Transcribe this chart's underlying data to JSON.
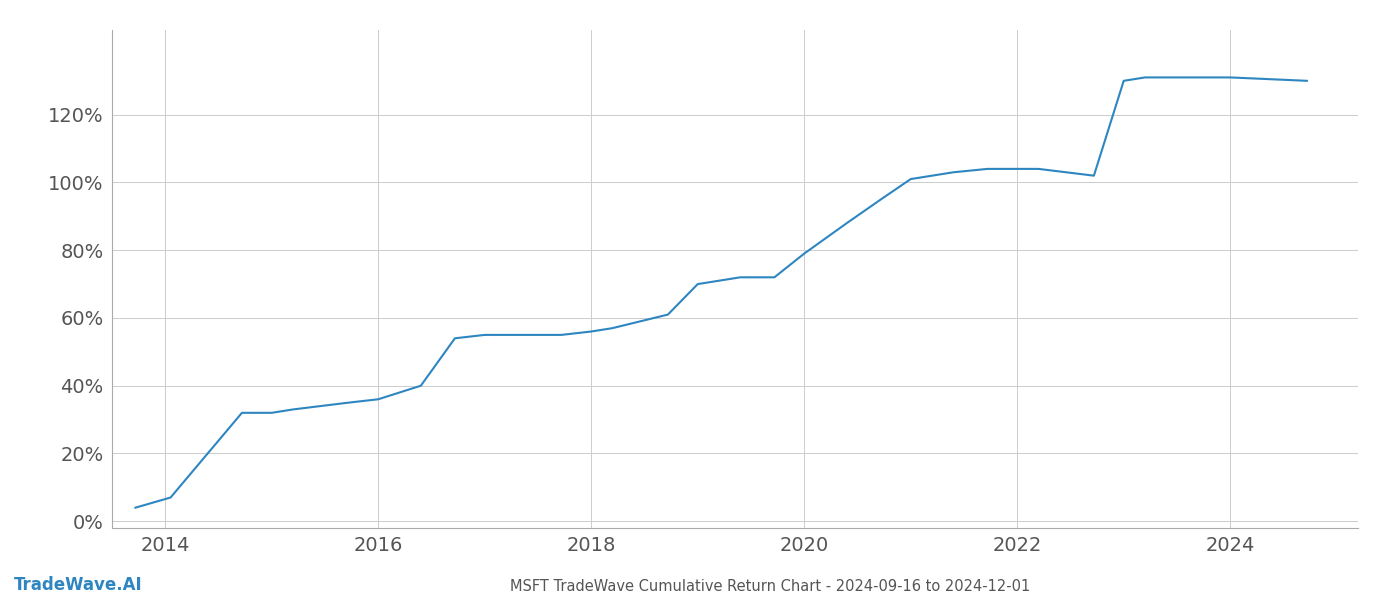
{
  "title": "MSFT TradeWave Cumulative Return Chart - 2024-09-16 to 2024-12-01",
  "watermark": "TradeWave.AI",
  "line_color": "#2e86c1",
  "line_width": 1.5,
  "background_color": "#ffffff",
  "grid_color": "#cccccc",
  "x_values": [
    2013.72,
    2014.05,
    2014.72,
    2015.0,
    2015.2,
    2015.72,
    2016.0,
    2016.4,
    2016.72,
    2017.0,
    2017.2,
    2017.6,
    2017.72,
    2018.0,
    2018.2,
    2018.72,
    2019.0,
    2019.4,
    2019.72,
    2020.0,
    2020.4,
    2020.72,
    2021.0,
    2021.2,
    2021.4,
    2021.72,
    2022.0,
    2022.2,
    2022.72,
    2023.0,
    2023.2,
    2023.6,
    2023.72,
    2024.0,
    2024.72
  ],
  "y_values": [
    0.04,
    0.07,
    0.32,
    0.32,
    0.33,
    0.35,
    0.36,
    0.4,
    0.54,
    0.55,
    0.55,
    0.55,
    0.55,
    0.56,
    0.57,
    0.61,
    0.7,
    0.72,
    0.72,
    0.79,
    0.88,
    0.95,
    1.01,
    1.02,
    1.03,
    1.04,
    1.04,
    1.04,
    1.02,
    1.3,
    1.31,
    1.31,
    1.31,
    1.31,
    1.3
  ],
  "xlim": [
    2013.5,
    2025.2
  ],
  "ylim": [
    -0.02,
    1.45
  ],
  "yticks": [
    0.0,
    0.2,
    0.4,
    0.6,
    0.8,
    1.0,
    1.2
  ],
  "xticks": [
    2014,
    2016,
    2018,
    2020,
    2022,
    2024
  ],
  "title_fontsize": 10.5,
  "tick_fontsize": 14,
  "watermark_fontsize": 12,
  "watermark_color": "#2e86c1"
}
